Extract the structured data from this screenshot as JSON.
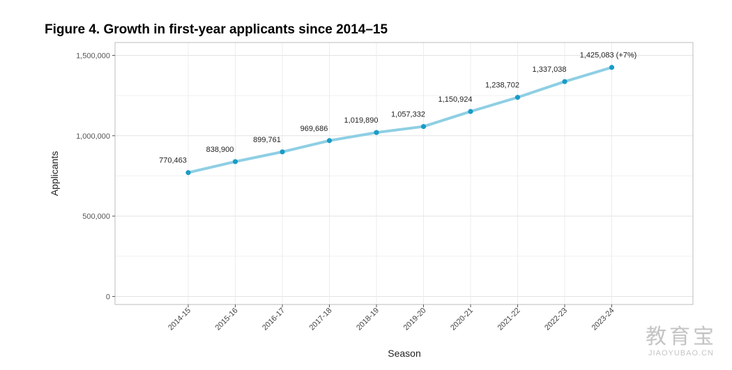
{
  "figure_title": "Figure 4. Growth in first-year applicants since 2014–15",
  "watermark": {
    "main": "教育宝",
    "sub": "JIAOYUBAO.CN"
  },
  "chart_data": {
    "type": "line",
    "xlabel": "Season",
    "ylabel": "Applicants",
    "categories": [
      "2014-15",
      "2015-16",
      "2016-17",
      "2017-18",
      "2018-19",
      "2019-20",
      "2020-21",
      "2021-22",
      "2022-23",
      "2023-24"
    ],
    "series": [
      {
        "values": [
          770463,
          838900,
          899761,
          969686,
          1019890,
          1057332,
          1150924,
          1238702,
          1337038,
          1425083
        ],
        "labels": [
          "770,463",
          "838,900",
          "899,761",
          "969,686",
          "1,019,890",
          "1,057,332",
          "1,150,924",
          "1,238,702",
          "1,337,038",
          "1,425,083 (+7%)"
        ]
      }
    ],
    "yticks": [
      0,
      500000,
      1000000,
      1500000
    ],
    "ytick_labels": [
      "0",
      "500,000",
      "1,000,000",
      "1,500,000"
    ],
    "ylim": [
      -50000,
      1580000
    ],
    "grid": true,
    "colors": {
      "line": "#8ecfe4",
      "point": "#1a9cc7"
    }
  }
}
